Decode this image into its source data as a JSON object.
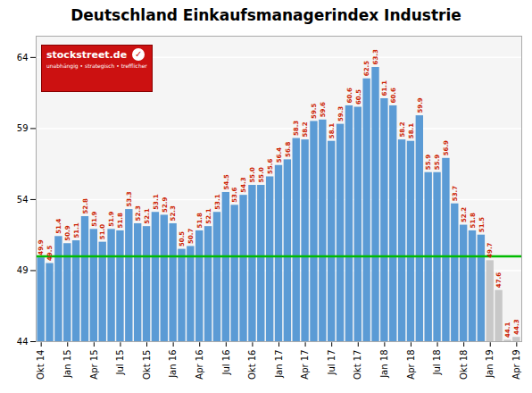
{
  "chart_data": {
    "type": "bar",
    "title": "Deutschland Einkaufsmanagerindex Industrie",
    "categories": [
      "Okt 14",
      null,
      null,
      "Jan 15",
      null,
      null,
      "Apr 15",
      null,
      null,
      "Jul 15",
      null,
      null,
      "Okt 15",
      null,
      null,
      "Jan 16",
      null,
      null,
      "Apr 16",
      null,
      null,
      "Jul 16",
      null,
      null,
      "Okt 16",
      null,
      null,
      "Jan 17",
      null,
      null,
      "Apr 17",
      null,
      null,
      "Jul 17",
      null,
      null,
      "Okt 17",
      null,
      null,
      "Jan 18",
      null,
      null,
      "Apr 18",
      null,
      null,
      "Jul 18",
      null,
      null,
      "Okt 18",
      null,
      null,
      "Jan 19",
      null,
      null,
      "Apr 19"
    ],
    "values": [
      49.9,
      49.5,
      51.4,
      50.9,
      51.1,
      52.8,
      51.9,
      51.0,
      51.9,
      51.8,
      53.3,
      52.3,
      52.1,
      53.1,
      52.9,
      52.3,
      50.5,
      50.7,
      51.8,
      52.1,
      53.1,
      54.5,
      53.6,
      54.3,
      55.0,
      55.0,
      55.6,
      56.4,
      56.8,
      58.3,
      58.2,
      59.5,
      59.6,
      58.1,
      59.3,
      60.6,
      60.5,
      62.5,
      63.3,
      61.1,
      60.6,
      58.2,
      58.1,
      59.9,
      55.9,
      55.9,
      56.9,
      53.7,
      52.2,
      51.8,
      51.5,
      49.7,
      47.6,
      44.1,
      44.3
    ],
    "value_labels": [
      "49.9",
      "49.5",
      "51.4",
      "50.9",
      "51.1",
      "52.8",
      "51.9",
      "51.0",
      "51.9",
      "51.8",
      "53.3",
      "52.3",
      "52.1",
      "53.1",
      "52.9",
      "52.3",
      "50.5",
      "50.7",
      "51.8",
      "52.1",
      "53.1",
      "54.5",
      "53.6",
      "54.3",
      "55.0",
      "55.0",
      "55.6",
      "56.4",
      "56.8",
      "58.3",
      "58.2",
      "59.5",
      "59.6",
      "58.1",
      "59.3",
      "60.6",
      "60.5",
      "62.5",
      "63.3",
      "61.1",
      "60.6",
      "58.2",
      "58.1",
      "59.9",
      "55.9",
      "55.9",
      "56.9",
      "53.7",
      "52.2",
      "51.8",
      "51.5",
      "49.7",
      "47.6",
      "44.1",
      "44.3"
    ],
    "colors": [
      "#5b9bd5",
      "#5b9bd5",
      "#5b9bd5",
      "#5b9bd5",
      "#5b9bd5",
      "#5b9bd5",
      "#5b9bd5",
      "#5b9bd5",
      "#5b9bd5",
      "#5b9bd5",
      "#5b9bd5",
      "#5b9bd5",
      "#5b9bd5",
      "#5b9bd5",
      "#5b9bd5",
      "#5b9bd5",
      "#5b9bd5",
      "#5b9bd5",
      "#5b9bd5",
      "#5b9bd5",
      "#5b9bd5",
      "#5b9bd5",
      "#5b9bd5",
      "#5b9bd5",
      "#5b9bd5",
      "#5b9bd5",
      "#5b9bd5",
      "#5b9bd5",
      "#5b9bd5",
      "#5b9bd5",
      "#5b9bd5",
      "#5b9bd5",
      "#5b9bd5",
      "#5b9bd5",
      "#5b9bd5",
      "#5b9bd5",
      "#5b9bd5",
      "#5b9bd5",
      "#5b9bd5",
      "#5b9bd5",
      "#5b9bd5",
      "#5b9bd5",
      "#5b9bd5",
      "#5b9bd5",
      "#5b9bd5",
      "#5b9bd5",
      "#5b9bd5",
      "#5b9bd5",
      "#5b9bd5",
      "#5b9bd5",
      "#5b9bd5",
      "#c8c8c8",
      "#c8c8c8",
      "#c8c8c8",
      "#c8c8c8"
    ],
    "ylim": [
      44.0,
      65.5
    ],
    "yticks": [
      44,
      49,
      54,
      59,
      64
    ],
    "grid": true,
    "data_labels": true,
    "hline": {
      "y": 50.0,
      "color": "#00bb00"
    },
    "annotations": [
      "stockstreet.de",
      "✓",
      "unabhängig • strategisch • trefflicher"
    ]
  }
}
